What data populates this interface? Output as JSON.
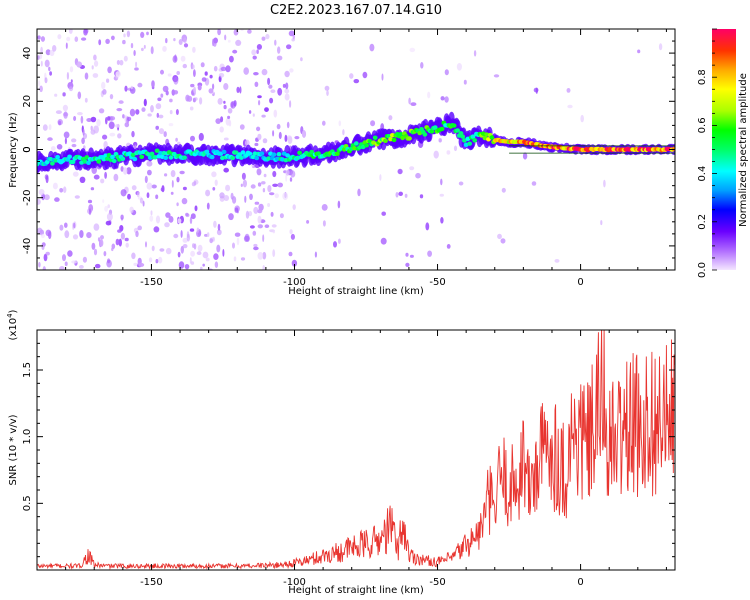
{
  "figure_title": "C2E2.2023.167.07.14.G10",
  "chart_data": [
    {
      "type": "heatmap",
      "title": "C2E2.2023.167.07.14.G10",
      "xlabel": "Height of straight line (km)",
      "ylabel": "Frequency (Hz)",
      "xlim": [
        -190,
        33
      ],
      "ylim": [
        -50,
        50
      ],
      "x_ticks": [
        -150,
        -100,
        -50,
        0
      ],
      "x_tick_labels": [
        "-150",
        "-100",
        "-50",
        "0"
      ],
      "y_ticks": [
        -40,
        -20,
        0,
        20,
        40
      ],
      "y_tick_labels": [
        "-40",
        "-20",
        "0",
        "20",
        "40"
      ],
      "colorbar": {
        "label": "Normalized spectral amplitude",
        "range": [
          0,
          1
        ],
        "ticks": [
          0.0,
          0.2,
          0.4,
          0.6,
          0.8
        ],
        "tick_labels": [
          "0.0",
          "0.2",
          "0.4",
          "0.6",
          "0.8"
        ],
        "colors": [
          "#f4e6ff",
          "#b06cff",
          "#6a00ff",
          "#0000ff",
          "#00a0ff",
          "#00ffff",
          "#00ff66",
          "#00ff00",
          "#aaff00",
          "#ffff00",
          "#ffaa00",
          "#ff3300",
          "#ff0066"
        ]
      },
      "ridge": {
        "description": "dominant frequency track (Hz) versus height (km)",
        "x": [
          -190,
          -170,
          -150,
          -130,
          -110,
          -100,
          -90,
          -80,
          -70,
          -60,
          -50,
          -45,
          -40,
          -35,
          -30,
          -25,
          -20,
          -10,
          0,
          10,
          20,
          33
        ],
        "freq": [
          -5,
          -4,
          -2,
          -2,
          -3,
          -3,
          -2,
          1,
          4,
          6,
          9,
          11,
          3,
          6,
          4,
          3,
          3,
          1,
          0,
          0,
          0,
          0
        ],
        "amplitude": [
          0.45,
          0.5,
          0.5,
          0.45,
          0.45,
          0.5,
          0.55,
          0.6,
          0.65,
          0.65,
          0.6,
          0.55,
          0.5,
          0.6,
          0.75,
          0.85,
          0.9,
          0.9,
          0.95,
          0.95,
          0.95,
          0.95
        ]
      }
    },
    {
      "type": "line",
      "title": "",
      "xlabel": "Height of straight line (km)",
      "ylabel": "SNR (10 * v/v)",
      "y_scale_label": "(x10",
      "y_scale_exponent": "4",
      "y_scale_close": ")",
      "xlim": [
        -190,
        33
      ],
      "ylim": [
        0,
        1.8
      ],
      "x_ticks": [
        -150,
        -100,
        -50,
        0
      ],
      "x_tick_labels": [
        "-150",
        "-100",
        "-50",
        "0"
      ],
      "y_ticks": [
        0.5,
        1.0,
        1.5
      ],
      "y_tick_labels": [
        "0.5",
        "1.0",
        "1.5"
      ],
      "color": "#e8342f",
      "series": [
        {
          "name": "SNR envelope",
          "x": [
            -190,
            -175,
            -172,
            -170,
            -165,
            -150,
            -120,
            -105,
            -100,
            -95,
            -90,
            -85,
            -80,
            -75,
            -70,
            -66,
            -64,
            -62,
            -60,
            -55,
            -50,
            -45,
            -40,
            -35,
            -32,
            -30,
            -28,
            -25,
            -22,
            -20,
            -18,
            -15,
            -12,
            -10,
            -8,
            -5,
            -3,
            0,
            3,
            5,
            8,
            10,
            15,
            20,
            25,
            30,
            33
          ],
          "y": [
            0.04,
            0.04,
            0.15,
            0.05,
            0.04,
            0.04,
            0.04,
            0.05,
            0.07,
            0.1,
            0.14,
            0.18,
            0.22,
            0.26,
            0.3,
            0.45,
            0.2,
            0.47,
            0.15,
            0.1,
            0.08,
            0.12,
            0.25,
            0.4,
            0.75,
            0.6,
            1.0,
            0.85,
            0.9,
            1.2,
            0.8,
            1.1,
            1.25,
            1.3,
            1.15,
            1.0,
            1.4,
            1.35,
            1.3,
            1.5,
            1.82,
            1.25,
            1.45,
            1.5,
            1.55,
            1.55,
            1.6
          ]
        }
      ]
    }
  ]
}
